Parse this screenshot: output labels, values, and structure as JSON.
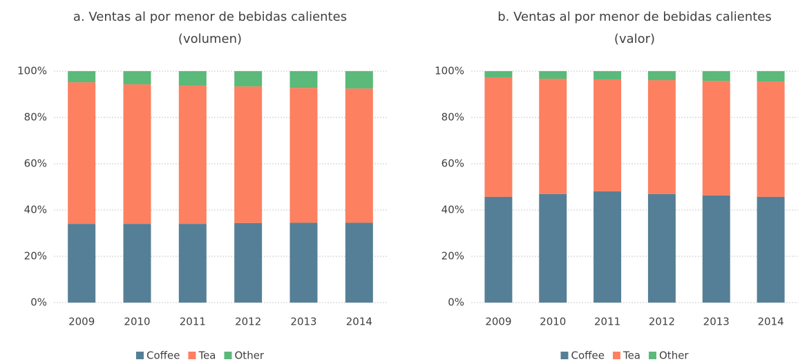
{
  "chart_data": [
    {
      "type": "stacked_bar",
      "title": [
        "a. Ventas al por menor de bebidas calientes",
        "(volumen)"
      ],
      "categories": [
        "2009",
        "2010",
        "2011",
        "2012",
        "2013",
        "2014"
      ],
      "series": [
        {
          "name": "Coffee",
          "color": "#557f96",
          "values": [
            34,
            34,
            34,
            34.4,
            34.5,
            34.5
          ]
        },
        {
          "name": "Tea",
          "color": "#fd8061",
          "values": [
            61.2,
            60.3,
            59.7,
            59,
            58.3,
            58
          ]
        },
        {
          "name": "Other",
          "color": "#5bb97a",
          "values": [
            4.8,
            5.7,
            6.3,
            6.6,
            7.2,
            7.5
          ]
        }
      ],
      "ylim": [
        0,
        100
      ],
      "yticks": [
        {
          "value": 0,
          "label": "0%"
        },
        {
          "value": 20,
          "label": "20%"
        },
        {
          "value": 40,
          "label": "40%"
        },
        {
          "value": 60,
          "label": "60%"
        },
        {
          "value": 80,
          "label": "80%"
        },
        {
          "value": 100,
          "label": "100%"
        }
      ],
      "grid": true,
      "legend": "bottom"
    },
    {
      "type": "stacked_bar",
      "title": [
        "b. Ventas al por menor de bebidas calientes",
        "(valor)"
      ],
      "categories": [
        "2009",
        "2010",
        "2011",
        "2012",
        "2013",
        "2014"
      ],
      "series": [
        {
          "name": "Coffee",
          "color": "#557f96",
          "values": [
            45.7,
            46.9,
            48.1,
            46.9,
            46.3,
            45.7
          ]
        },
        {
          "name": "Tea",
          "color": "#fd8061",
          "values": [
            51.6,
            49.8,
            48.3,
            49.2,
            49.5,
            49.8
          ]
        },
        {
          "name": "Other",
          "color": "#5bb97a",
          "values": [
            2.7,
            3.3,
            3.6,
            3.9,
            4.2,
            4.5
          ]
        }
      ],
      "ylim": [
        0,
        100
      ],
      "yticks": [
        {
          "value": 0,
          "label": "0%"
        },
        {
          "value": 20,
          "label": "20%"
        },
        {
          "value": 40,
          "label": "40%"
        },
        {
          "value": 60,
          "label": "60%"
        },
        {
          "value": 80,
          "label": "80%"
        },
        {
          "value": 100,
          "label": "100%"
        }
      ],
      "grid": true,
      "legend": "bottom"
    }
  ]
}
